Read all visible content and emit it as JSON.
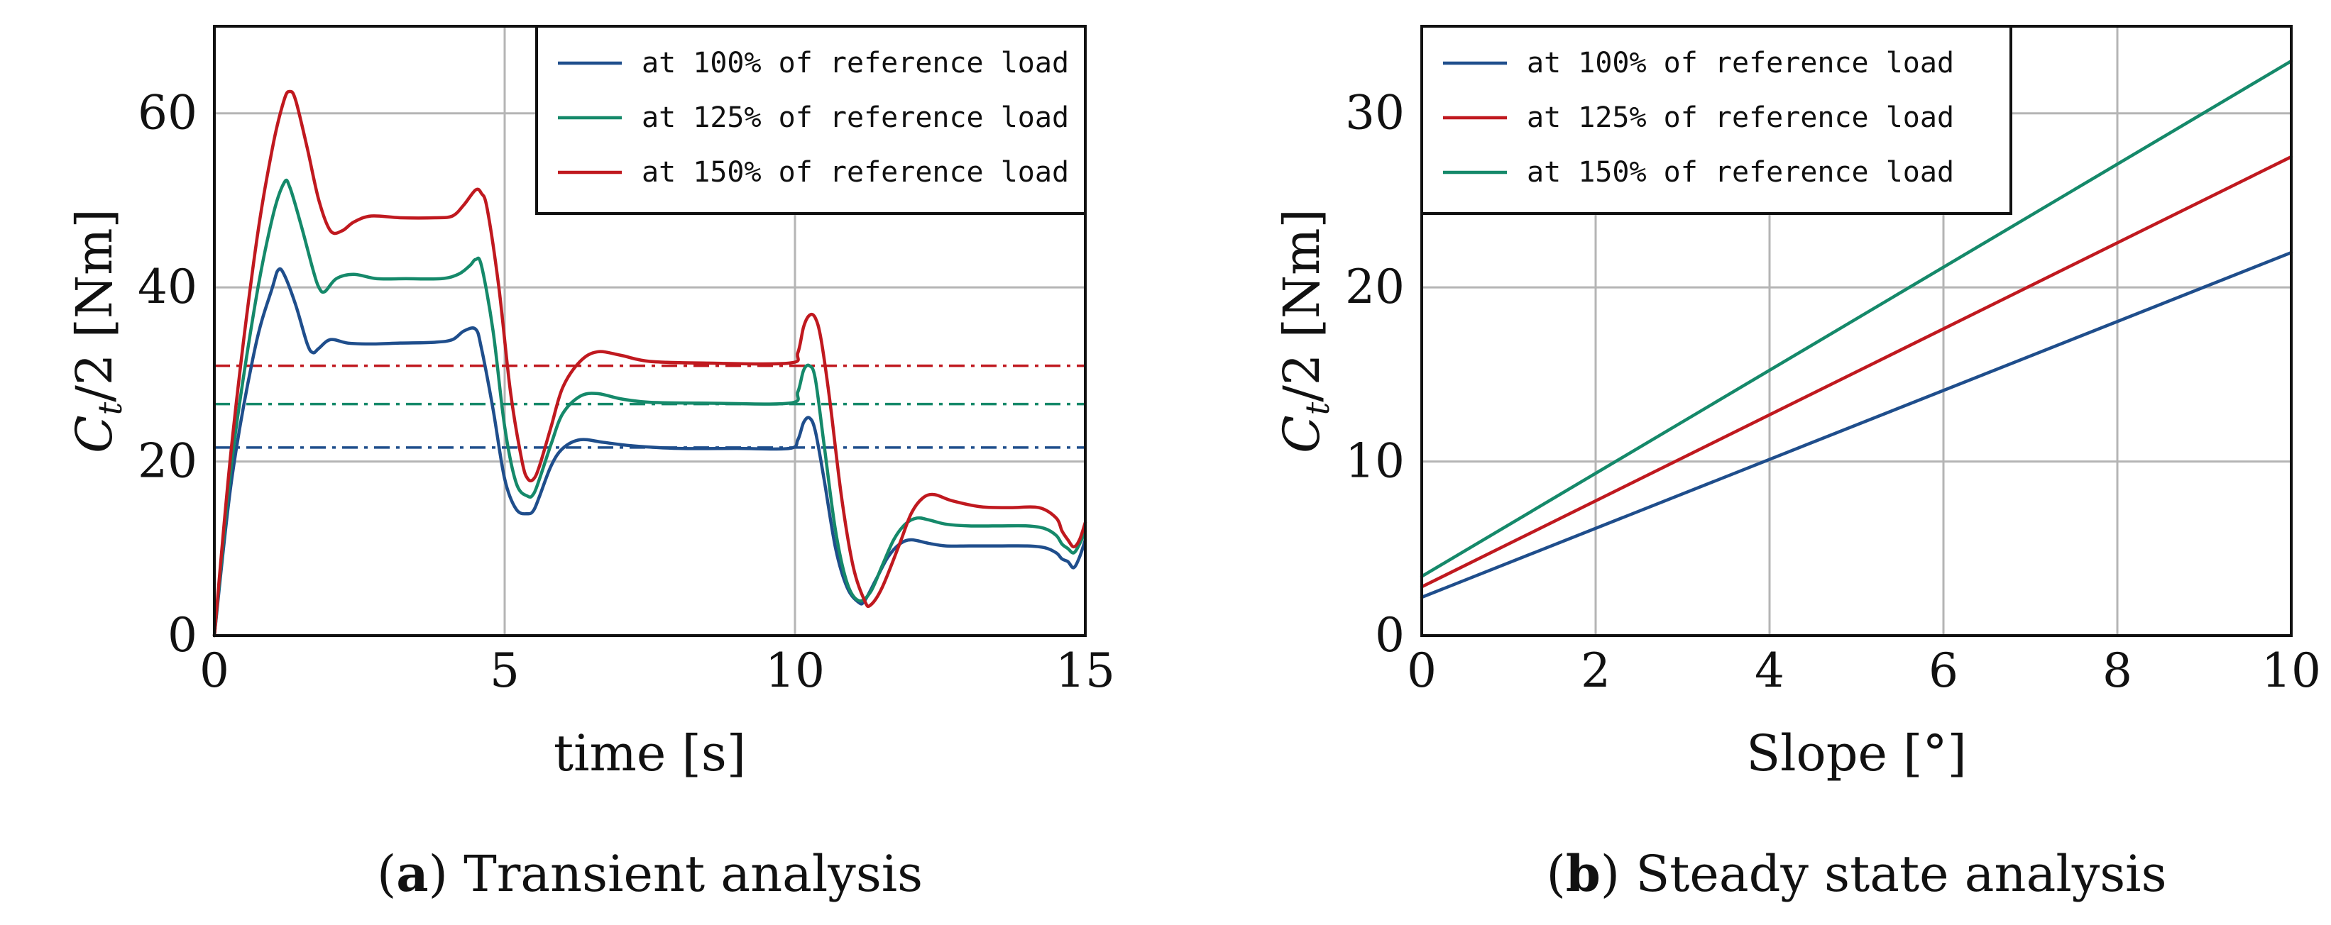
{
  "chart_data": [
    {
      "id": "a",
      "type": "line",
      "caption_letter": "a",
      "caption_text": "Transient analysis",
      "xlabel": "time [s]",
      "ylabel": "C_t/2 [Nm]",
      "xlim": [
        0,
        15
      ],
      "ylim": [
        0,
        70
      ],
      "xticks": [
        0,
        5,
        10,
        15
      ],
      "yticks": [
        0,
        20,
        40,
        60
      ],
      "xtick_labels": [
        "0",
        "5",
        "10",
        "15"
      ],
      "ytick_labels": [
        "0",
        "20",
        "40",
        "60"
      ],
      "grid": true,
      "legend_position": "top-right",
      "series": [
        {
          "name": "at 100% of reference load",
          "color": "#1f4e8c",
          "x": [
            0,
            0.3,
            0.7,
            1.0,
            1.1,
            1.2,
            1.4,
            1.6,
            1.7,
            1.8,
            2.0,
            2.3,
            2.7,
            3.2,
            3.8,
            4.1,
            4.3,
            4.5,
            4.6,
            4.8,
            5.0,
            5.2,
            5.4,
            5.5,
            5.6,
            5.8,
            6.0,
            6.3,
            6.7,
            7.2,
            8.0,
            9.0,
            9.9,
            10.05,
            10.15,
            10.25,
            10.35,
            10.5,
            10.7,
            10.9,
            11.1,
            11.2,
            11.4,
            11.6,
            11.8,
            12.0,
            12.3,
            12.6,
            13.0,
            13.5,
            14.0,
            14.3,
            14.5,
            14.6,
            14.7,
            14.8,
            14.9,
            15.0
          ],
          "y": [
            0,
            18,
            33,
            40,
            42,
            41.5,
            38,
            33.5,
            32.5,
            33,
            34,
            33.6,
            33.5,
            33.6,
            33.7,
            34,
            35,
            35.2,
            33,
            26,
            18,
            14.5,
            14,
            14.4,
            16,
            19.5,
            21.5,
            22.5,
            22.2,
            21.8,
            21.5,
            21.5,
            21.5,
            22.5,
            24.5,
            25,
            23.5,
            18,
            10,
            5.5,
            3.8,
            4,
            6.5,
            9,
            10.5,
            11,
            10.6,
            10.3,
            10.3,
            10.3,
            10.3,
            10.1,
            9.5,
            8.8,
            8.5,
            7.8,
            9,
            11
          ]
        },
        {
          "name": "at 125% of reference load",
          "color": "#15896a",
          "x": [
            0,
            0.3,
            0.7,
            1.0,
            1.2,
            1.3,
            1.5,
            1.7,
            1.8,
            1.9,
            2.1,
            2.4,
            2.8,
            3.3,
            3.9,
            4.2,
            4.4,
            4.5,
            4.6,
            4.8,
            5.0,
            5.2,
            5.4,
            5.5,
            5.6,
            5.8,
            6.0,
            6.3,
            6.6,
            7.0,
            7.5,
            8.5,
            9.9,
            10.05,
            10.15,
            10.25,
            10.35,
            10.5,
            10.7,
            10.9,
            11.1,
            11.3,
            11.5,
            11.7,
            11.9,
            12.1,
            12.3,
            12.6,
            13.0,
            13.5,
            14.0,
            14.3,
            14.5,
            14.6,
            14.7,
            14.8,
            14.9,
            15.0
          ],
          "y": [
            0,
            20,
            38,
            48,
            52,
            51.5,
            47,
            42,
            40,
            39.5,
            41,
            41.5,
            41,
            41,
            41,
            41.5,
            42.5,
            43.2,
            42.5,
            35,
            24,
            17.5,
            16,
            16.3,
            18,
            22,
            25.5,
            27.5,
            27.8,
            27.2,
            26.8,
            26.7,
            26.7,
            28,
            30.5,
            31,
            29.5,
            22,
            12,
            6,
            4,
            5,
            8,
            11,
            12.8,
            13.5,
            13.3,
            12.8,
            12.6,
            12.6,
            12.6,
            12.3,
            11.5,
            10.5,
            10,
            9.5,
            10.5,
            12
          ]
        },
        {
          "name": "at 150% of reference load",
          "color": "#c0191f",
          "x": [
            0,
            0.3,
            0.7,
            1.0,
            1.2,
            1.3,
            1.4,
            1.6,
            1.8,
            2.0,
            2.2,
            2.4,
            2.7,
            3.2,
            3.8,
            4.1,
            4.3,
            4.5,
            4.6,
            4.7,
            4.9,
            5.1,
            5.3,
            5.4,
            5.5,
            5.6,
            5.8,
            6.0,
            6.3,
            6.6,
            7.0,
            7.5,
            8.5,
            9.9,
            10.05,
            10.15,
            10.25,
            10.35,
            10.45,
            10.6,
            10.8,
            11.0,
            11.2,
            11.3,
            11.5,
            11.8,
            12.0,
            12.2,
            12.4,
            12.7,
            13.2,
            13.7,
            14.2,
            14.5,
            14.6,
            14.7,
            14.8,
            14.9,
            15.0
          ],
          "y": [
            0,
            22,
            44,
            56,
            61.5,
            62.5,
            61.5,
            56,
            50,
            46.5,
            46.5,
            47.5,
            48.2,
            48,
            48,
            48.2,
            49.5,
            51.2,
            50.8,
            49,
            40,
            28,
            20,
            18,
            18,
            19.5,
            24,
            28.5,
            31.5,
            32.6,
            32.2,
            31.5,
            31.3,
            31.3,
            32.5,
            35.5,
            36.8,
            36.5,
            34,
            27,
            16,
            8,
            4,
            3.5,
            5.5,
            10.5,
            14,
            15.8,
            16.2,
            15.5,
            14.8,
            14.7,
            14.7,
            13.5,
            12,
            11,
            10.2,
            11,
            13
          ]
        }
      ],
      "reference_lines": [
        {
          "series": "at 100% of reference load",
          "y": 21.6,
          "color": "#1f4e8c",
          "style": "dash-dot"
        },
        {
          "series": "at 125% of reference load",
          "y": 26.6,
          "color": "#15896a",
          "style": "dash-dot"
        },
        {
          "series": "at 150% of reference load",
          "y": 31.0,
          "color": "#c0191f",
          "style": "dash-dot"
        }
      ]
    },
    {
      "id": "b",
      "type": "line",
      "caption_letter": "b",
      "caption_text": "Steady state analysis",
      "xlabel": "Slope [°]",
      "ylabel": "C_t/2 [Nm]",
      "xlim": [
        0,
        10
      ],
      "ylim": [
        0,
        35
      ],
      "xticks": [
        0,
        2,
        4,
        6,
        8,
        10
      ],
      "yticks": [
        0,
        10,
        20,
        30
      ],
      "xtick_labels": [
        "0",
        "2",
        "4",
        "6",
        "8",
        "10"
      ],
      "ytick_labels": [
        "0",
        "10",
        "20",
        "30"
      ],
      "grid": true,
      "legend_position": "top-left",
      "legend_entries": [
        {
          "name": "at 100% of reference load",
          "color": "#1f4e8c"
        },
        {
          "name": "at 125% of reference load",
          "color": "#c0191f"
        },
        {
          "name": "at 150% of reference load",
          "color": "#15896a"
        }
      ],
      "series": [
        {
          "name": "at 100% of reference load",
          "color": "#1f4e8c",
          "x": [
            0,
            10
          ],
          "y": [
            2.2,
            22.0
          ]
        },
        {
          "name": "at 125% of reference load",
          "color": "#c0191f",
          "x": [
            0,
            10
          ],
          "y": [
            2.8,
            27.5
          ]
        },
        {
          "name": "at 150% of reference load",
          "color": "#15896a",
          "x": [
            0,
            10
          ],
          "y": [
            3.4,
            33.0
          ]
        }
      ]
    }
  ]
}
